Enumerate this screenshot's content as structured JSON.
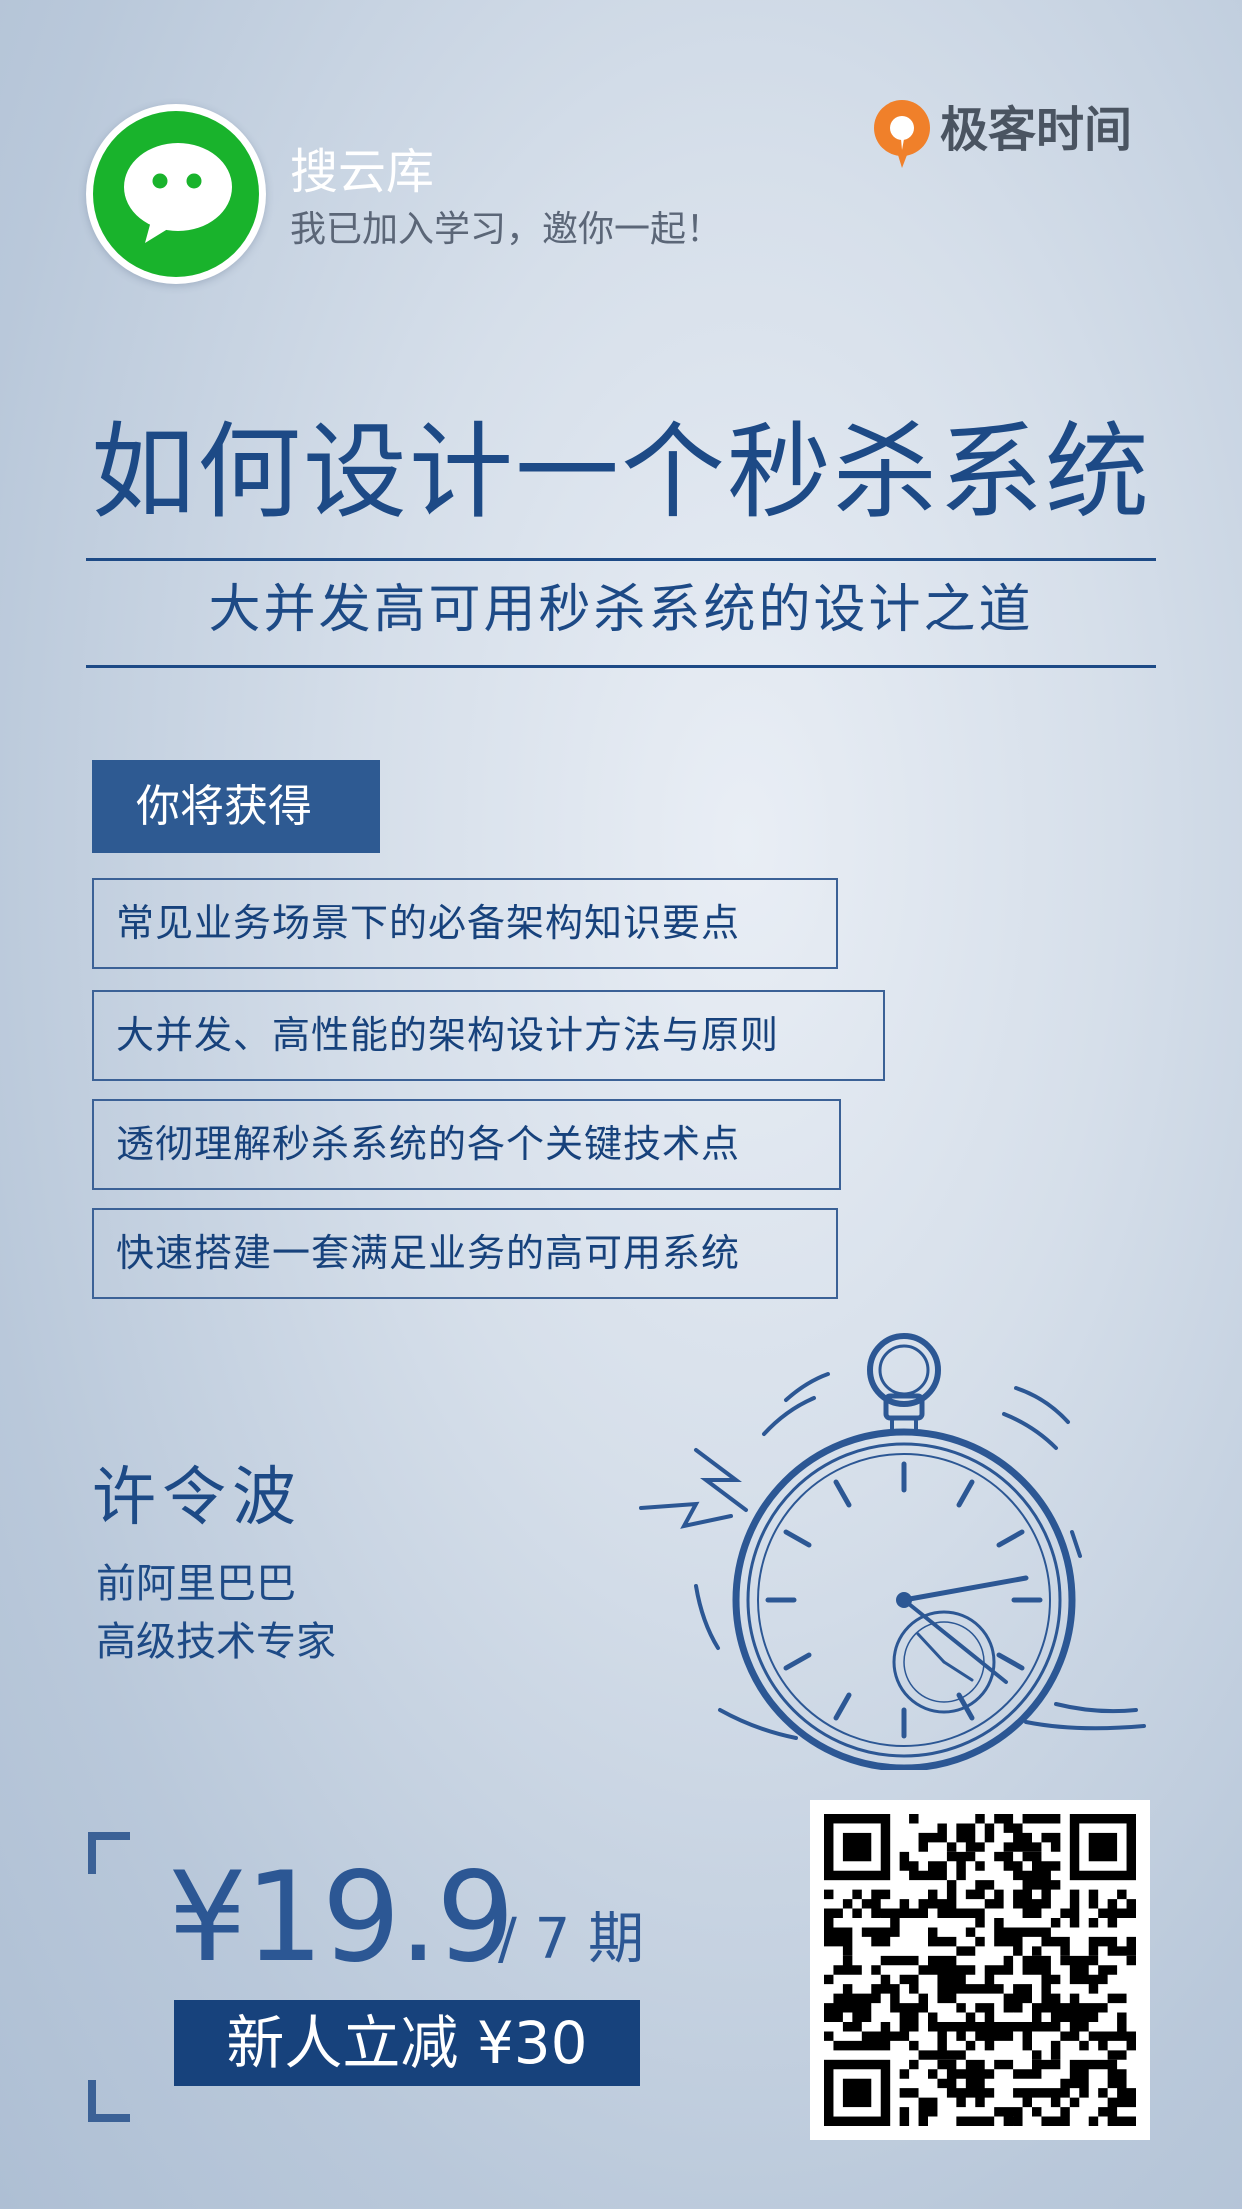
{
  "header": {
    "user_name": "搜云库",
    "invite_message": "我已加入学习，邀你一起！",
    "brand_name": "极客时间",
    "wechat_icon": "wechat-icon",
    "brand_logo": "geektime-logo"
  },
  "course": {
    "title": "如何设计一个秒杀系统",
    "subtitle": "大并发高可用秒杀系统的设计之道"
  },
  "benefits": {
    "heading": "你将获得",
    "items": [
      "常见业务场景下的必备架构知识要点",
      "大并发、高性能的架构设计方法与原则",
      "透彻理解秒杀系统的各个关键技术点",
      "快速搭建一套满足业务的高可用系统"
    ]
  },
  "author": {
    "name": "许令波",
    "title_line1": "前阿里巴巴",
    "title_line2": "高级技术专家"
  },
  "pricing": {
    "price": "¥19.9",
    "period": "/ 7 期",
    "promo": "新人立减 ¥30"
  },
  "illustration": "pocket-watch-icon",
  "qr_code": "qr-code",
  "colors": {
    "primary": "#1d4a86",
    "wechat_green": "#19b32c",
    "brand_orange": "#f0802a",
    "background": "#d6dfea"
  }
}
